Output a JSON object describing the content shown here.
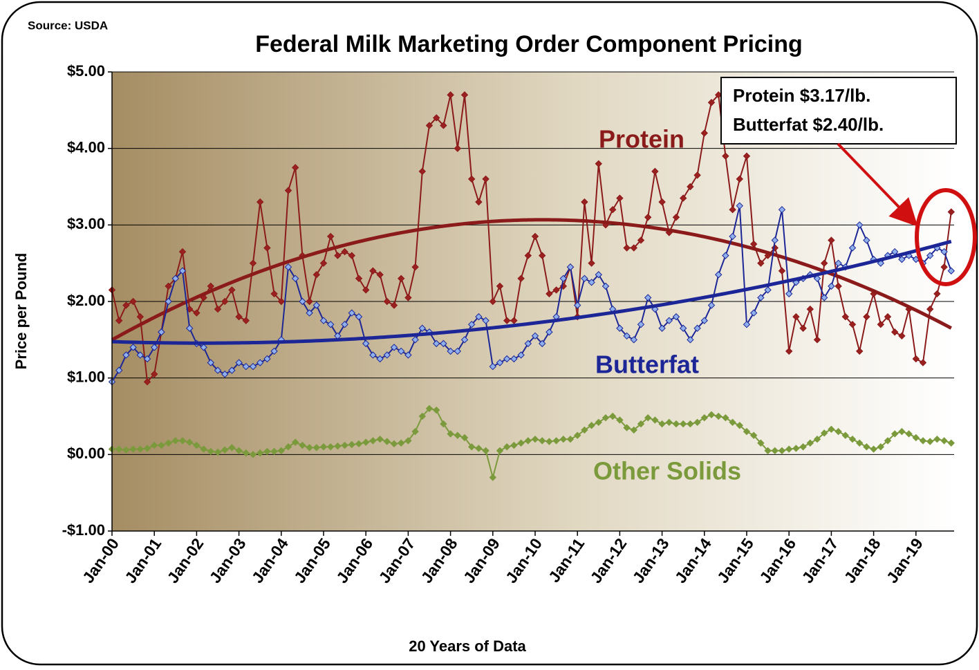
{
  "chart_data": {
    "type": "line",
    "source": "Source: USDA",
    "title": "Federal Milk Marketing Order Component Pricing",
    "x_label": "20 Years of Data",
    "y_label": "Price per Pound",
    "annotations": [
      "Protein $3.17/lb.",
      "Butterfat $2.40/lb."
    ],
    "categories": [
      "Jan-00",
      null,
      null,
      null,
      null,
      null,
      "Jan-01",
      null,
      null,
      null,
      null,
      null,
      "Jan-02",
      null,
      null,
      null,
      null,
      null,
      "Jan-03",
      null,
      null,
      null,
      null,
      null,
      "Jan-04",
      null,
      null,
      null,
      null,
      null,
      "Jan-05",
      null,
      null,
      null,
      null,
      null,
      "Jan-06",
      null,
      null,
      null,
      null,
      null,
      "Jan-07",
      null,
      null,
      null,
      null,
      null,
      "Jan-08",
      null,
      null,
      null,
      null,
      null,
      "Jan-09",
      null,
      null,
      null,
      null,
      null,
      "Jan-10",
      null,
      null,
      null,
      null,
      null,
      "Jan-11",
      null,
      null,
      null,
      null,
      null,
      "Jan-12",
      null,
      null,
      null,
      null,
      null,
      "Jan-13",
      null,
      null,
      null,
      null,
      null,
      "Jan-14",
      null,
      null,
      null,
      null,
      null,
      "Jan-15",
      null,
      null,
      null,
      null,
      null,
      "Jan-16",
      null,
      null,
      null,
      null,
      null,
      "Jan-17",
      null,
      null,
      null,
      null,
      null,
      "Jan-18",
      null,
      null,
      null,
      null,
      null,
      "Jan-19",
      null,
      null,
      null,
      null,
      null
    ],
    "series": [
      {
        "name": "Protein",
        "color": "#8b1a1a",
        "marker_fill": "#9b2020",
        "trendline": {
          "type": "polynomial",
          "order": 2
        },
        "values": [
          2.15,
          1.75,
          1.95,
          2.0,
          1.8,
          0.95,
          1.05,
          1.6,
          2.2,
          2.3,
          2.65,
          1.9,
          1.85,
          2.05,
          2.2,
          1.9,
          2.0,
          2.15,
          1.8,
          1.75,
          2.5,
          3.3,
          2.7,
          2.1,
          2.0,
          3.45,
          3.75,
          2.6,
          2.0,
          2.35,
          2.5,
          2.85,
          2.6,
          2.65,
          2.6,
          2.3,
          2.15,
          2.4,
          2.35,
          2.0,
          1.95,
          2.3,
          2.05,
          2.45,
          3.7,
          4.3,
          4.4,
          4.3,
          4.7,
          4.0,
          4.7,
          3.6,
          3.3,
          3.6,
          2.0,
          2.2,
          1.75,
          1.75,
          2.3,
          2.6,
          2.85,
          2.6,
          2.1,
          2.15,
          2.2,
          2.45,
          1.8,
          3.3,
          2.5,
          3.8,
          3.0,
          3.2,
          3.35,
          2.7,
          2.7,
          2.8,
          3.1,
          3.7,
          3.3,
          2.9,
          3.1,
          3.35,
          3.5,
          3.65,
          4.2,
          4.6,
          4.7,
          3.9,
          3.2,
          3.6,
          3.9,
          2.75,
          2.5,
          2.6,
          2.7,
          2.4,
          1.35,
          1.8,
          1.65,
          1.9,
          1.5,
          2.5,
          2.8,
          2.2,
          1.8,
          1.7,
          1.35,
          1.8,
          2.1,
          1.7,
          1.8,
          1.6,
          1.55,
          1.9,
          1.25,
          1.2,
          1.9,
          2.1,
          2.45,
          3.17
        ]
      },
      {
        "name": "Butterfat",
        "color": "#1c2696",
        "marker_fill": "#8fb0ec",
        "trendline": {
          "type": "polynomial",
          "order": 2
        },
        "values": [
          0.95,
          1.1,
          1.3,
          1.4,
          1.3,
          1.25,
          1.4,
          1.6,
          2.0,
          2.3,
          2.4,
          1.65,
          1.45,
          1.4,
          1.2,
          1.1,
          1.05,
          1.1,
          1.2,
          1.15,
          1.15,
          1.2,
          1.25,
          1.35,
          1.5,
          2.45,
          2.3,
          2.0,
          1.85,
          1.95,
          1.75,
          1.7,
          1.55,
          1.7,
          1.85,
          1.8,
          1.45,
          1.3,
          1.25,
          1.3,
          1.4,
          1.35,
          1.3,
          1.5,
          1.65,
          1.6,
          1.45,
          1.45,
          1.35,
          1.35,
          1.5,
          1.7,
          1.8,
          1.75,
          1.15,
          1.2,
          1.25,
          1.25,
          1.3,
          1.45,
          1.55,
          1.45,
          1.6,
          1.8,
          2.3,
          2.45,
          1.95,
          2.3,
          2.25,
          2.35,
          2.2,
          1.9,
          1.65,
          1.55,
          1.5,
          1.7,
          2.05,
          1.9,
          1.65,
          1.75,
          1.8,
          1.65,
          1.5,
          1.65,
          1.75,
          1.95,
          2.35,
          2.6,
          2.85,
          3.25,
          1.7,
          1.85,
          2.05,
          2.15,
          2.8,
          3.2,
          2.1,
          2.25,
          2.3,
          2.35,
          2.3,
          2.05,
          2.2,
          2.5,
          2.45,
          2.7,
          3.0,
          2.8,
          2.55,
          2.5,
          2.6,
          2.65,
          2.55,
          2.6,
          2.55,
          2.5,
          2.6,
          2.7,
          2.65,
          2.4
        ]
      },
      {
        "name": "Other Solids",
        "color": "#7a9a3c",
        "marker_fill": "#7a9a3c",
        "values": [
          0.07,
          0.07,
          0.06,
          0.07,
          0.07,
          0.08,
          0.12,
          0.12,
          0.15,
          0.18,
          0.18,
          0.16,
          0.12,
          0.07,
          0.04,
          0.03,
          0.06,
          0.09,
          0.05,
          0.02,
          0,
          0.02,
          0.04,
          0.04,
          0.05,
          0.1,
          0.16,
          0.12,
          0.09,
          0.09,
          0.1,
          0.1,
          0.11,
          0.12,
          0.13,
          0.14,
          0.16,
          0.18,
          0.2,
          0.17,
          0.14,
          0.15,
          0.18,
          0.3,
          0.5,
          0.6,
          0.58,
          0.4,
          0.27,
          0.25,
          0.22,
          0.1,
          0.08,
          0.05,
          -0.3,
          0.05,
          0.1,
          0.12,
          0.15,
          0.18,
          0.2,
          0.18,
          0.17,
          0.18,
          0.2,
          0.2,
          0.25,
          0.32,
          0.38,
          0.42,
          0.48,
          0.5,
          0.45,
          0.35,
          0.32,
          0.4,
          0.48,
          0.45,
          0.4,
          0.42,
          0.4,
          0.4,
          0.4,
          0.42,
          0.48,
          0.52,
          0.5,
          0.48,
          0.42,
          0.38,
          0.3,
          0.25,
          0.15,
          0.05,
          0.05,
          0.05,
          0.07,
          0.08,
          0.1,
          0.15,
          0.2,
          0.28,
          0.33,
          0.3,
          0.25,
          0.2,
          0.15,
          0.1,
          0.07,
          0.1,
          0.18,
          0.27,
          0.3,
          0.27,
          0.22,
          0.18,
          0.17,
          0.2,
          0.18,
          0.15
        ]
      }
    ],
    "ylim": [
      -1,
      5
    ],
    "yticks": [
      {
        "value": -1,
        "label": "-$1.00"
      },
      {
        "value": 0,
        "label": "$0.00"
      },
      {
        "value": 1,
        "label": "$1.00"
      },
      {
        "value": 2,
        "label": "$2.00"
      },
      {
        "value": 3,
        "label": "$3.00"
      },
      {
        "value": 4,
        "label": "$4.00"
      },
      {
        "value": 5,
        "label": "$5.00"
      }
    ],
    "grid": true
  }
}
